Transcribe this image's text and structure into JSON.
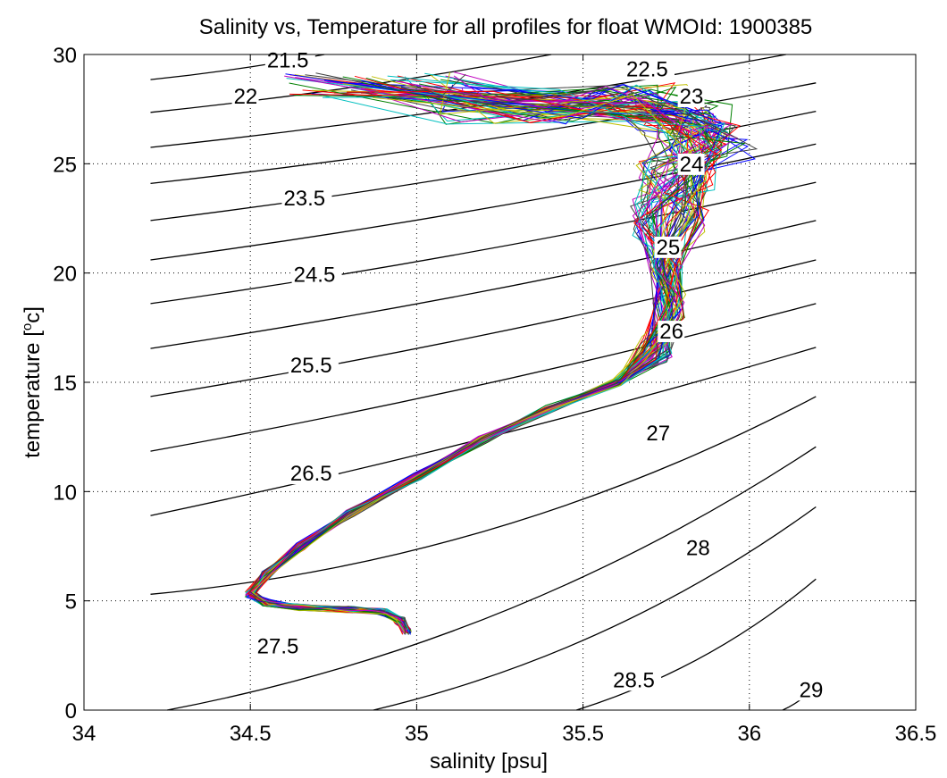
{
  "chart_data": {
    "type": "line",
    "title": "Salinity vs, Temperature for all profiles for float WMOId: 1900385",
    "xlabel": "salinity [psu]",
    "ylabel": "temperature [",
    "ylabel_sup": "o",
    "ylabel_end": "c]",
    "xlim": [
      34,
      36.5
    ],
    "ylim": [
      0,
      30
    ],
    "xticks": [
      34,
      34.5,
      35,
      35.5,
      36,
      36.5
    ],
    "xtick_labels": [
      "34",
      "34.5",
      "35",
      "35.5",
      "36",
      "36.5"
    ],
    "yticks": [
      0,
      5,
      10,
      15,
      20,
      25,
      30
    ],
    "ytick_labels": [
      "0",
      "5",
      "10",
      "15",
      "20",
      "25",
      "30"
    ],
    "grid": true,
    "grid_style": "dotted",
    "contour_color": "#000000",
    "profile_colors": [
      "#0000ff",
      "#008000",
      "#ff0000",
      "#00bfbf",
      "#bf00bf",
      "#bfbf00",
      "#404040"
    ],
    "profile_count": 70,
    "mean_profile": {
      "S": [
        34.97,
        34.95,
        34.9,
        34.8,
        34.65,
        34.55,
        34.5,
        34.55,
        34.65,
        34.8,
        35.0,
        35.2,
        35.4,
        35.6,
        35.72,
        35.76,
        35.75,
        35.76,
        35.78,
        35.8,
        35.75,
        35.6,
        35.4,
        35.1
      ],
      "T": [
        3.6,
        4.1,
        4.5,
        4.6,
        4.7,
        4.9,
        5.3,
        6.2,
        7.5,
        9.0,
        10.7,
        12.4,
        13.8,
        15.0,
        16.5,
        18.5,
        20.5,
        22.5,
        24.5,
        26.0,
        27.0,
        27.8,
        28.3,
        28.7
      ]
    },
    "isopycnals": [
      {
        "label": "21.5",
        "p0": [
          34.2,
          28.85
        ],
        "p1": [
          36.2,
          33.25
        ],
        "label_at": [
          34.55,
          29.4
        ]
      },
      {
        "label": "22",
        "p0": [
          34.2,
          27.35
        ],
        "p1": [
          36.2,
          31.75
        ],
        "label_at": [
          34.45,
          27.75
        ]
      },
      {
        "label": "22.5",
        "p0": [
          34.2,
          25.75
        ],
        "p1": [
          36.2,
          30.2
        ],
        "label_at": [
          35.63,
          29.0
        ]
      },
      {
        "label": "23",
        "p0": [
          34.2,
          24.1
        ],
        "p1": [
          36.2,
          28.7
        ],
        "label_at": [
          35.79,
          27.75
        ]
      },
      {
        "label": "23.5",
        "p0": [
          34.2,
          22.4
        ],
        "p1": [
          36.2,
          27.4
        ],
        "label_at": [
          34.6,
          23.1
        ]
      },
      {
        "label": "24",
        "p0": [
          34.2,
          20.6
        ],
        "p1": [
          36.2,
          25.9
        ],
        "label_at": [
          35.79,
          24.65
        ]
      },
      {
        "label": "24.5",
        "p0": [
          34.2,
          18.6
        ],
        "p1": [
          36.2,
          24.15
        ],
        "label_at": [
          34.63,
          19.6
        ]
      },
      {
        "label": "25",
        "p0": [
          34.2,
          16.55
        ],
        "p1": [
          36.2,
          22.4
        ],
        "label_at": [
          35.72,
          20.85
        ]
      },
      {
        "label": "25.5",
        "p0": [
          34.2,
          14.35
        ],
        "p1": [
          36.2,
          20.6
        ],
        "label_at": [
          34.62,
          15.45
        ]
      },
      {
        "label": "26",
        "p0": [
          34.2,
          11.85
        ],
        "p1": [
          36.2,
          18.6
        ],
        "label_at": [
          35.73,
          17.0
        ]
      },
      {
        "label": "26.5",
        "p0": [
          34.2,
          8.9
        ],
        "p1": [
          36.2,
          16.6
        ],
        "label_at": [
          34.62,
          10.5
        ]
      },
      {
        "label": "27",
        "p0": [
          34.2,
          5.3
        ],
        "p1": [
          36.2,
          14.35
        ],
        "label_at": [
          35.69,
          12.35
        ]
      },
      {
        "label": "27.5",
        "p0": [
          34.25,
          0.0
        ],
        "p1": [
          36.2,
          12.05
        ],
        "label_at": [
          34.52,
          2.6
        ]
      },
      {
        "label": "28",
        "p0": [
          34.87,
          0.0
        ],
        "p1": [
          36.2,
          9.3
        ],
        "label_at": [
          35.81,
          7.1
        ]
      },
      {
        "label": "28.5",
        "p0": [
          35.48,
          0.0
        ],
        "p1": [
          36.2,
          6.0
        ],
        "label_at": [
          35.59,
          1.05
        ]
      },
      {
        "label": "29",
        "p0": [
          36.1,
          0.0
        ],
        "p1": [
          36.2,
          1.1
        ],
        "label_at": [
          36.15,
          0.6
        ]
      }
    ]
  }
}
